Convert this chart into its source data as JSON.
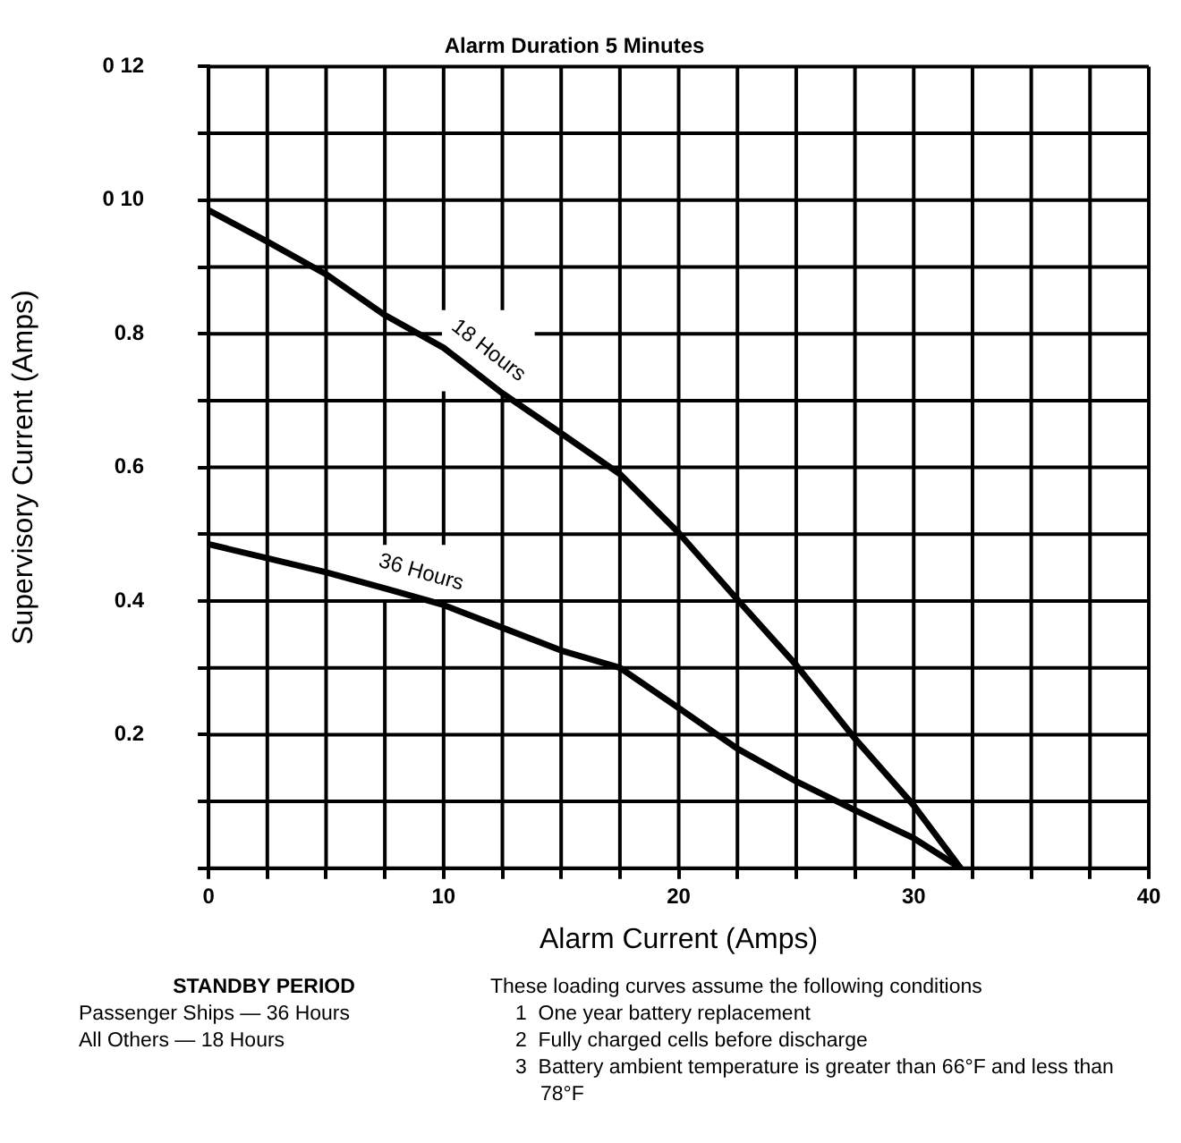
{
  "chart_data": {
    "type": "line",
    "title": "Alarm Duration 5 Minutes",
    "xlabel": "Alarm Current (Amps)",
    "ylabel": "Supervisory Current (Amps)",
    "x": [
      0,
      2.5,
      5,
      7.5,
      10,
      12.5,
      15,
      17.5,
      20,
      22.5,
      25,
      27.5,
      30,
      32
    ],
    "series": [
      {
        "name": "18 Hours",
        "color": "#000000",
        "values": [
          0.985,
          0.938,
          0.889,
          0.828,
          0.779,
          0.711,
          0.651,
          0.59,
          0.502,
          0.402,
          0.304,
          0.194,
          0.094,
          0
        ]
      },
      {
        "name": "36 Hours",
        "color": "#000000",
        "values": [
          0.485,
          0.464,
          0.443,
          0.419,
          0.394,
          0.36,
          0.326,
          0.3,
          0.24,
          0.179,
          0.13,
          0.087,
          0.045,
          0
        ]
      }
    ],
    "xlim": [
      0,
      40
    ],
    "ylim": [
      0,
      1.2
    ],
    "xticks": [
      0,
      {
        "value": 2.5,
        "label": null
      },
      {
        "value": 5,
        "label": null
      },
      {
        "value": 7.5,
        "label": null
      },
      10,
      {
        "value": 12.5,
        "label": null
      },
      {
        "value": 15,
        "label": null
      },
      {
        "value": 17.5,
        "label": null
      },
      20,
      {
        "value": 22.5,
        "label": null
      },
      {
        "value": 25,
        "label": null
      },
      {
        "value": 27.5,
        "label": null
      },
      30,
      {
        "value": 32.5,
        "label": null
      },
      {
        "value": 35,
        "label": null
      },
      {
        "value": 37.5,
        "label": null
      },
      40
    ],
    "yticks": [
      {
        "value": 0,
        "label": null
      },
      {
        "value": 0.1,
        "label": null
      },
      0.2,
      {
        "value": 0.3,
        "label": null
      },
      0.4,
      {
        "value": 0.5,
        "label": null
      },
      0.6,
      {
        "value": 0.7,
        "label": null
      },
      0.8,
      {
        "value": 0.9,
        "label": null
      },
      {
        "value": 1.0,
        "label": "0 10"
      },
      {
        "value": 1.1,
        "label": null
      },
      {
        "value": 1.2,
        "label": "0 12"
      }
    ],
    "grid": true,
    "legend": false,
    "marker": "none",
    "line_style": "solid",
    "annotations": [
      "STANDBY PERIOD",
      "Passenger Ships — 36 Hours",
      "All Others — 18 Hours",
      "These loading curves assume the following conditions",
      "1  One year battery replacement",
      "2  Fully charged cells before discharge",
      "3  Battery ambient temperature is greater than 66°F and less than 78°F"
    ]
  }
}
